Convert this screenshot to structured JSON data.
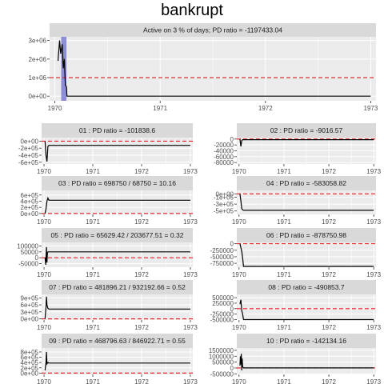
{
  "page": {
    "title": "bankrupt"
  },
  "colors": {
    "strip": "#d9d9d9",
    "panel_bg": "#ebebeb",
    "grid": "#ffffff",
    "line": "#000000",
    "threshold": "#e41a1c",
    "active_band": "#7b7bd6",
    "tick_text": "#4d4d4d"
  },
  "chart_data": [
    {
      "id": "main",
      "type": "line",
      "title": "Active on 3 % of days; PD ratio =  -1197433.04",
      "x_ticks": [
        "1970",
        "1971",
        "1972",
        "1973"
      ],
      "y_ticks": [
        "0e+00",
        "1e+06",
        "2e+06",
        "3e+06"
      ],
      "ylim": [
        -250000,
        3200000
      ],
      "threshold": 1000000,
      "active_band": [
        1970.06,
        1970.11
      ],
      "series": [
        [
          1970.03,
          1900000
        ],
        [
          1970.045,
          3000000
        ],
        [
          1970.055,
          2300000
        ],
        [
          1970.07,
          2800000
        ],
        [
          1970.08,
          1500000
        ],
        [
          1970.09,
          2000000
        ],
        [
          1970.1,
          600000
        ],
        [
          1970.11,
          500000
        ],
        [
          1970.115,
          0
        ],
        [
          1973.0,
          0
        ]
      ]
    },
    {
      "id": "p01",
      "type": "line",
      "title": "01 : PD ratio =  -101838.6",
      "x_ticks": [
        "1970",
        "1971",
        "1972",
        "1973"
      ],
      "y_ticks": [
        "-6e+05",
        "-4e+05",
        "-2e+05",
        "0e+00"
      ],
      "ylim": [
        -650000,
        100000
      ],
      "threshold": 0,
      "series": [
        [
          1970.02,
          0
        ],
        [
          1970.04,
          -400000
        ],
        [
          1970.06,
          -580000
        ],
        [
          1970.08,
          -150000
        ],
        [
          1970.1,
          -120000
        ],
        [
          1973.0,
          -120000
        ]
      ]
    },
    {
      "id": "p02",
      "type": "line",
      "title": "02 : PD ratio =  -9016.57",
      "x_ticks": [
        "1970",
        "1971",
        "1972",
        "1973"
      ],
      "y_ticks": [
        "-80000",
        "-60000",
        "-40000",
        "-20000",
        "0"
      ],
      "ylim": [
        -85000,
        5000
      ],
      "threshold": 0,
      "series": [
        [
          1970.02,
          0
        ],
        [
          1970.04,
          -25000
        ],
        [
          1970.06,
          -5000
        ],
        [
          1970.08,
          -2000
        ],
        [
          1973.0,
          -2000
        ]
      ]
    },
    {
      "id": "p03",
      "type": "line",
      "title": "03 : PD ratio =  698750 / 68750 = 10.16",
      "x_ticks": [
        "1970",
        "1971",
        "1972",
        "1973"
      ],
      "y_ticks": [
        "0e+00",
        "2e+05",
        "4e+05",
        "6e+05"
      ],
      "ylim": [
        -30000,
        750000
      ],
      "threshold": 0,
      "series": [
        [
          1970.02,
          0
        ],
        [
          1970.04,
          150000
        ],
        [
          1970.06,
          400000
        ],
        [
          1970.08,
          500000
        ],
        [
          1970.1,
          430000
        ],
        [
          1973.0,
          430000
        ]
      ]
    },
    {
      "id": "p04",
      "type": "line",
      "title": "04 : PD ratio =  -583058.82",
      "x_ticks": [
        "1970",
        "1971",
        "1972",
        "1973"
      ],
      "y_ticks": [
        "-5e+05",
        "-3e+05",
        "-1e+05",
        "0e+00"
      ],
      "ylim": [
        -600000,
        100000
      ],
      "threshold": 0,
      "series": [
        [
          1970.02,
          0
        ],
        [
          1970.04,
          -200000
        ],
        [
          1970.06,
          -430000
        ],
        [
          1970.08,
          -470000
        ],
        [
          1970.1,
          -480000
        ],
        [
          1973.0,
          -480000
        ]
      ]
    },
    {
      "id": "p05",
      "type": "line",
      "title": "05 : PD ratio =  65629.42 / 203677.51 = 0.32",
      "x_ticks": [
        "1970",
        "1971",
        "1972",
        "1973"
      ],
      "y_ticks": [
        "-50000",
        "0",
        "50000",
        "100000"
      ],
      "ylim": [
        -80000,
        130000
      ],
      "threshold": 0,
      "series": [
        [
          1970.02,
          0
        ],
        [
          1970.035,
          -60000
        ],
        [
          1970.05,
          90000
        ],
        [
          1970.06,
          -40000
        ],
        [
          1970.07,
          40000
        ],
        [
          1970.08,
          50000
        ],
        [
          1970.1,
          50000
        ],
        [
          1973.0,
          50000
        ]
      ]
    },
    {
      "id": "p06",
      "type": "line",
      "title": "06 : PD ratio =  -878750.98",
      "x_ticks": [
        "1970",
        "1971",
        "1972",
        "1973"
      ],
      "y_ticks": [
        "-750000",
        "-500000",
        "-250000",
        "0"
      ],
      "ylim": [
        -900000,
        50000
      ],
      "threshold": 0,
      "series": [
        [
          1970.02,
          0
        ],
        [
          1970.04,
          -150000
        ],
        [
          1970.06,
          -300000
        ],
        [
          1970.08,
          -550000
        ],
        [
          1970.1,
          -870000
        ],
        [
          1973.0,
          -870000
        ]
      ]
    },
    {
      "id": "p07",
      "type": "line",
      "title": "07 : PD ratio =  481896.21 / 932192.66 = 0.52",
      "x_ticks": [
        "1970",
        "1971",
        "1972",
        "1973"
      ],
      "y_ticks": [
        "0e+00",
        "3e+05",
        "6e+05",
        "9e+05"
      ],
      "ylim": [
        -50000,
        1050000
      ],
      "threshold": 0,
      "series": [
        [
          1970.02,
          0
        ],
        [
          1970.04,
          500000
        ],
        [
          1970.05,
          950000
        ],
        [
          1970.06,
          600000
        ],
        [
          1970.08,
          450000
        ],
        [
          1970.1,
          420000
        ],
        [
          1973.0,
          420000
        ]
      ]
    },
    {
      "id": "p08",
      "type": "line",
      "title": "08 : PD ratio =  -490853.7",
      "x_ticks": [
        "1970",
        "1971",
        "1972",
        "1973"
      ],
      "y_ticks": [
        "-500000",
        "-250000",
        "0",
        "250000",
        "500000"
      ],
      "ylim": [
        -520000,
        650000
      ],
      "threshold": 0,
      "series": [
        [
          1970.02,
          200000
        ],
        [
          1970.04,
          400000
        ],
        [
          1970.06,
          -100000
        ],
        [
          1970.08,
          -250000
        ],
        [
          1970.1,
          -500000
        ],
        [
          1973.0,
          -500000
        ]
      ]
    },
    {
      "id": "p09",
      "type": "line",
      "title": "09 : PD ratio =  468796.63 / 846922.71 = 0.55",
      "x_ticks": [
        "1970",
        "1971",
        "1972",
        "1973"
      ],
      "y_ticks": [
        "0e+00",
        "2e+05",
        "4e+05",
        "6e+05",
        "8e+05"
      ],
      "ylim": [
        -50000,
        950000
      ],
      "threshold": 0,
      "series": [
        [
          1970.02,
          100000
        ],
        [
          1970.04,
          400000
        ],
        [
          1970.05,
          800000
        ],
        [
          1970.06,
          350000
        ],
        [
          1970.08,
          400000
        ],
        [
          1970.1,
          380000
        ],
        [
          1973.0,
          380000
        ]
      ]
    },
    {
      "id": "p10",
      "type": "line",
      "title": "10 : PD ratio =  -142134.16",
      "x_ticks": [
        "1970",
        "1971",
        "1972",
        "1973"
      ],
      "y_ticks": [
        "-500000",
        "0",
        "500000",
        "1000000",
        "1500000"
      ],
      "ylim": [
        -550000,
        1700000
      ],
      "threshold": 0,
      "series": [
        [
          1970.02,
          200000
        ],
        [
          1970.03,
          1000000
        ],
        [
          1970.04,
          300000
        ],
        [
          1970.05,
          1200000
        ],
        [
          1970.06,
          -200000
        ],
        [
          1970.07,
          800000
        ],
        [
          1970.08,
          100000
        ],
        [
          1970.1,
          0
        ],
        [
          1973.0,
          0
        ]
      ]
    }
  ]
}
